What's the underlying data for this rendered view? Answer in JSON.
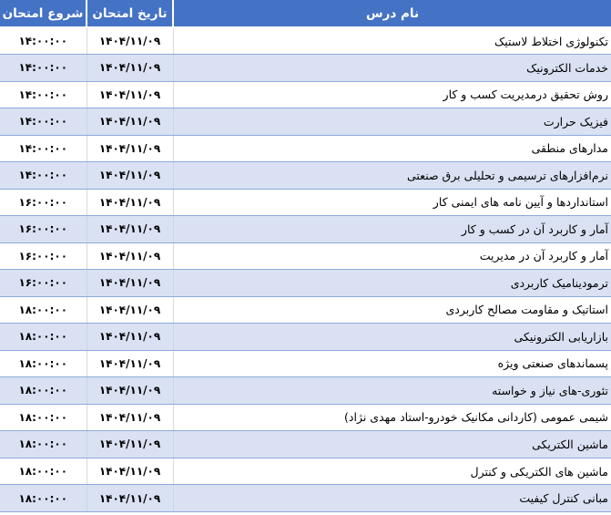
{
  "table": {
    "headers": {
      "course": "نام درس",
      "date": "تاریخ امتحان",
      "time": "شروع امتحان"
    },
    "rows": [
      {
        "course": "تکنولوژی اختلاط لاستیک",
        "date": "۱۴۰۴/۱۱/۰۹",
        "time": "۱۴:۰۰:۰۰"
      },
      {
        "course": "خدمات الکترونیک",
        "date": "۱۴۰۴/۱۱/۰۹",
        "time": "۱۴:۰۰:۰۰"
      },
      {
        "course": "روش تحقیق درمدیریت کسب و کار",
        "date": "۱۴۰۴/۱۱/۰۹",
        "time": "۱۴:۰۰:۰۰"
      },
      {
        "course": "فیزیک حرارت",
        "date": "۱۴۰۴/۱۱/۰۹",
        "time": "۱۴:۰۰:۰۰"
      },
      {
        "course": "مدارهای منطقی",
        "date": "۱۴۰۴/۱۱/۰۹",
        "time": "۱۴:۰۰:۰۰"
      },
      {
        "course": "نرم‌افزارهای ترسیمی و تحلیلی برق صنعتی",
        "date": "۱۴۰۴/۱۱/۰۹",
        "time": "۱۴:۰۰:۰۰"
      },
      {
        "course": "استانداردها و آیین نامه های ایمنی کار",
        "date": "۱۴۰۴/۱۱/۰۹",
        "time": "۱۶:۰۰:۰۰"
      },
      {
        "course": "آمار و کاربرد آن در کسب و کار",
        "date": "۱۴۰۴/۱۱/۰۹",
        "time": "۱۶:۰۰:۰۰"
      },
      {
        "course": "آمار و کاربرد آن در مدیریت",
        "date": "۱۴۰۴/۱۱/۰۹",
        "time": "۱۶:۰۰:۰۰"
      },
      {
        "course": "ترمودینامیک کاربردی",
        "date": "۱۴۰۴/۱۱/۰۹",
        "time": "۱۶:۰۰:۰۰"
      },
      {
        "course": "استاتیک و مقاومت مصالح کاربردی",
        "date": "۱۴۰۴/۱۱/۰۹",
        "time": "۱۸:۰۰:۰۰"
      },
      {
        "course": "بازاریابی الکترونیکی",
        "date": "۱۴۰۴/۱۱/۰۹",
        "time": "۱۸:۰۰:۰۰"
      },
      {
        "course": "پسماندهای صنعتی ویژه",
        "date": "۱۴۰۴/۱۱/۰۹",
        "time": "۱۸:۰۰:۰۰"
      },
      {
        "course": "تئوری-های نیاز و خواسته",
        "date": "۱۴۰۴/۱۱/۰۹",
        "time": "۱۸:۰۰:۰۰"
      },
      {
        "course": "شیمی عمومی (کاردانی مکانیک خودرو-استاد مهدی نژاد)",
        "date": "۱۴۰۴/۱۱/۰۹",
        "time": "۱۸:۰۰:۰۰"
      },
      {
        "course": "ماشین الکتریکی",
        "date": "۱۴۰۴/۱۱/۰۹",
        "time": "۱۸:۰۰:۰۰"
      },
      {
        "course": "ماشین های الکتریکی و کنترل",
        "date": "۱۴۰۴/۱۱/۰۹",
        "time": "۱۸:۰۰:۰۰"
      },
      {
        "course": "مبانی کنترل کیفیت",
        "date": "۱۴۰۴/۱۱/۰۹",
        "time": "۱۸:۰۰:۰۰"
      }
    ]
  },
  "colors": {
    "header_bg": "#4472C4",
    "header_text": "#FFFFFF",
    "band_row_bg": "#D9E1F2",
    "plain_row_bg": "#FFFFFF",
    "row_border": "#8EA9DB",
    "gridline": "#D9D9D9"
  }
}
